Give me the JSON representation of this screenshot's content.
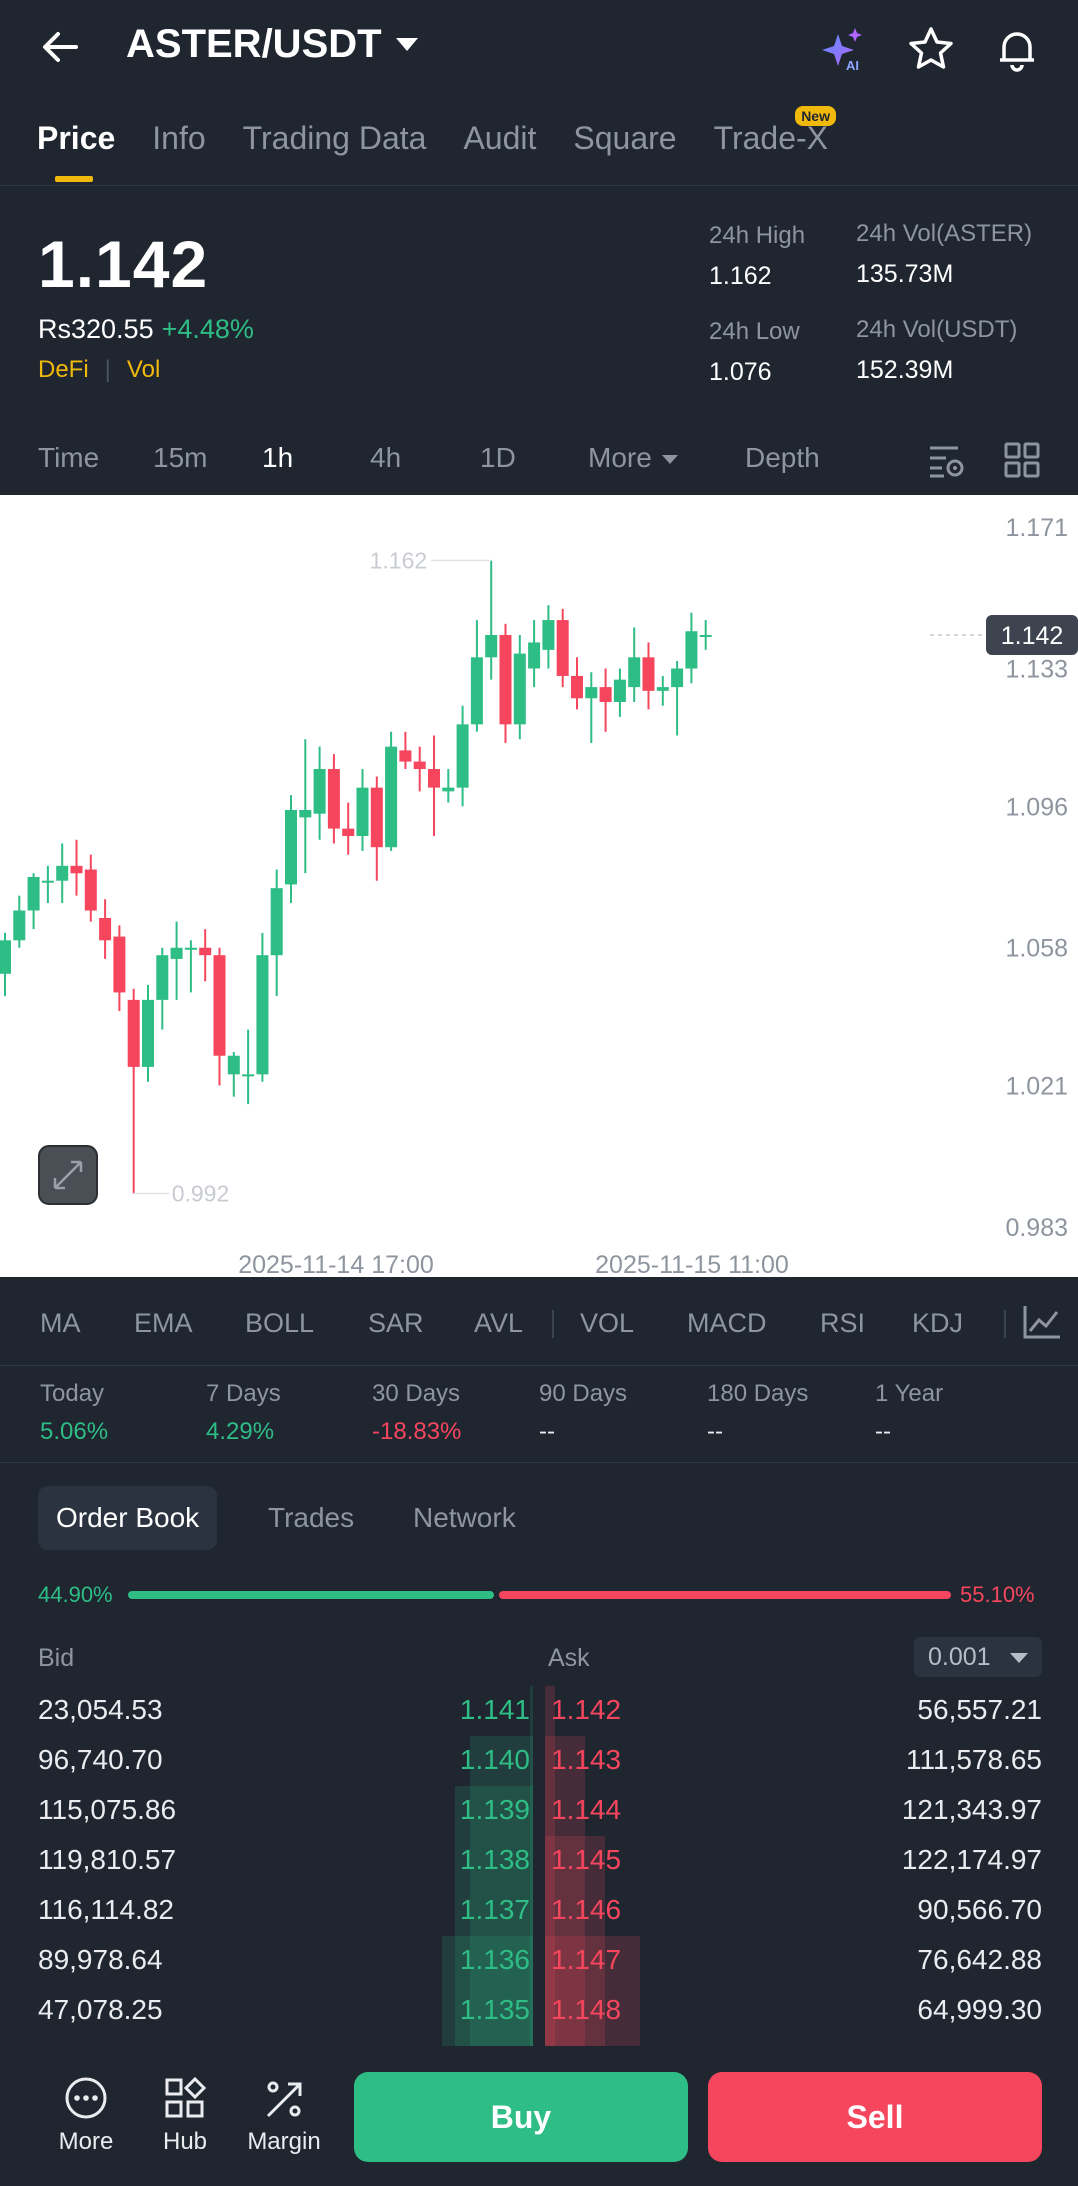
{
  "header": {
    "pair": "ASTER/USDT",
    "icons": [
      "back-arrow-icon",
      "ai-sparkle-icon",
      "star-icon",
      "bell-icon"
    ]
  },
  "tabs": [
    {
      "label": "Price",
      "active": true
    },
    {
      "label": "Info"
    },
    {
      "label": "Trading Data"
    },
    {
      "label": "Audit"
    },
    {
      "label": "Square"
    },
    {
      "label": "Trade-X",
      "badge": "New"
    }
  ],
  "summary": {
    "price": "1.142",
    "fiat": "Rs320.55",
    "change": "+4.48%",
    "tags": [
      "DeFi",
      "Vol"
    ],
    "high_label": "24h High",
    "high": "1.162",
    "low_label": "24h Low",
    "low": "1.076",
    "vol_aster_label": "24h Vol(ASTER)",
    "vol_aster": "135.73M",
    "vol_usdt_label": "24h Vol(USDT)",
    "vol_usdt": "152.39M"
  },
  "timeframes": [
    "Time",
    "15m",
    "1h",
    "4h",
    "1D",
    "More",
    "Depth"
  ],
  "active_timeframe": "1h",
  "chart": {
    "y_ticks": [
      "1.171",
      "1.133",
      "1.096",
      "1.058",
      "1.021",
      "0.983"
    ],
    "x_ticks": [
      "2025-11-14 17:00",
      "2025-11-15 11:00"
    ],
    "last_price": "1.142",
    "high_marker": "1.162",
    "low_marker": "0.992",
    "up_color": "#2ebd85",
    "down_color": "#f6465d"
  },
  "chart_data": {
    "type": "candlestick",
    "y_range": [
      0.983,
      1.171
    ],
    "candles": [
      {
        "o": 1.051,
        "h": 1.062,
        "l": 1.045,
        "c": 1.06
      },
      {
        "o": 1.06,
        "h": 1.072,
        "l": 1.058,
        "c": 1.068
      },
      {
        "o": 1.068,
        "h": 1.078,
        "l": 1.063,
        "c": 1.077
      },
      {
        "o": 1.076,
        "h": 1.08,
        "l": 1.07,
        "c": 1.076
      },
      {
        "o": 1.076,
        "h": 1.086,
        "l": 1.07,
        "c": 1.08
      },
      {
        "o": 1.08,
        "h": 1.087,
        "l": 1.072,
        "c": 1.078
      },
      {
        "o": 1.079,
        "h": 1.083,
        "l": 1.065,
        "c": 1.068
      },
      {
        "o": 1.066,
        "h": 1.071,
        "l": 1.055,
        "c": 1.06
      },
      {
        "o": 1.061,
        "h": 1.064,
        "l": 1.041,
        "c": 1.046
      },
      {
        "o": 1.044,
        "h": 1.047,
        "l": 0.992,
        "c": 1.026
      },
      {
        "o": 1.026,
        "h": 1.048,
        "l": 1.022,
        "c": 1.044
      },
      {
        "o": 1.044,
        "h": 1.058,
        "l": 1.036,
        "c": 1.056
      },
      {
        "o": 1.055,
        "h": 1.065,
        "l": 1.044,
        "c": 1.058
      },
      {
        "o": 1.058,
        "h": 1.06,
        "l": 1.046,
        "c": 1.058
      },
      {
        "o": 1.058,
        "h": 1.063,
        "l": 1.049,
        "c": 1.056
      },
      {
        "o": 1.056,
        "h": 1.058,
        "l": 1.021,
        "c": 1.029
      },
      {
        "o": 1.024,
        "h": 1.03,
        "l": 1.018,
        "c": 1.029
      },
      {
        "o": 1.024,
        "h": 1.036,
        "l": 1.016,
        "c": 1.024
      },
      {
        "o": 1.024,
        "h": 1.062,
        "l": 1.022,
        "c": 1.056
      },
      {
        "o": 1.056,
        "h": 1.079,
        "l": 1.045,
        "c": 1.074
      },
      {
        "o": 1.075,
        "h": 1.099,
        "l": 1.07,
        "c": 1.095
      },
      {
        "o": 1.093,
        "h": 1.114,
        "l": 1.078,
        "c": 1.095
      },
      {
        "o": 1.094,
        "h": 1.112,
        "l": 1.087,
        "c": 1.106
      },
      {
        "o": 1.106,
        "h": 1.11,
        "l": 1.086,
        "c": 1.09
      },
      {
        "o": 1.09,
        "h": 1.097,
        "l": 1.083,
        "c": 1.088
      },
      {
        "o": 1.088,
        "h": 1.106,
        "l": 1.084,
        "c": 1.101
      },
      {
        "o": 1.101,
        "h": 1.104,
        "l": 1.076,
        "c": 1.085
      },
      {
        "o": 1.085,
        "h": 1.116,
        "l": 1.084,
        "c": 1.112
      },
      {
        "o": 1.111,
        "h": 1.116,
        "l": 1.106,
        "c": 1.108
      },
      {
        "o": 1.108,
        "h": 1.112,
        "l": 1.1,
        "c": 1.106
      },
      {
        "o": 1.106,
        "h": 1.115,
        "l": 1.088,
        "c": 1.101
      },
      {
        "o": 1.1,
        "h": 1.106,
        "l": 1.097,
        "c": 1.101
      },
      {
        "o": 1.101,
        "h": 1.123,
        "l": 1.096,
        "c": 1.118
      },
      {
        "o": 1.118,
        "h": 1.146,
        "l": 1.116,
        "c": 1.136
      },
      {
        "o": 1.136,
        "h": 1.162,
        "l": 1.13,
        "c": 1.142
      },
      {
        "o": 1.142,
        "h": 1.145,
        "l": 1.113,
        "c": 1.118
      },
      {
        "o": 1.118,
        "h": 1.142,
        "l": 1.114,
        "c": 1.137
      },
      {
        "o": 1.133,
        "h": 1.146,
        "l": 1.128,
        "c": 1.14
      },
      {
        "o": 1.138,
        "h": 1.15,
        "l": 1.133,
        "c": 1.146
      },
      {
        "o": 1.146,
        "h": 1.149,
        "l": 1.128,
        "c": 1.131
      },
      {
        "o": 1.131,
        "h": 1.136,
        "l": 1.122,
        "c": 1.125
      },
      {
        "o": 1.125,
        "h": 1.132,
        "l": 1.113,
        "c": 1.128
      },
      {
        "o": 1.128,
        "h": 1.133,
        "l": 1.116,
        "c": 1.124
      },
      {
        "o": 1.124,
        "h": 1.133,
        "l": 1.12,
        "c": 1.13
      },
      {
        "o": 1.128,
        "h": 1.144,
        "l": 1.124,
        "c": 1.136
      },
      {
        "o": 1.136,
        "h": 1.14,
        "l": 1.122,
        "c": 1.127
      },
      {
        "o": 1.127,
        "h": 1.131,
        "l": 1.123,
        "c": 1.128
      },
      {
        "o": 1.128,
        "h": 1.135,
        "l": 1.115,
        "c": 1.133
      },
      {
        "o": 1.133,
        "h": 1.148,
        "l": 1.129,
        "c": 1.143
      },
      {
        "o": 1.142,
        "h": 1.146,
        "l": 1.138,
        "c": 1.142
      }
    ]
  },
  "indicators": [
    "MA",
    "EMA",
    "BOLL",
    "SAR",
    "AVL",
    "VOL",
    "MACD",
    "RSI",
    "KDJ"
  ],
  "performance": [
    {
      "label": "Today",
      "value": "5.06%",
      "color": "#2ebd85"
    },
    {
      "label": "7 Days",
      "value": "4.29%",
      "color": "#2ebd85"
    },
    {
      "label": "30 Days",
      "value": "-18.83%",
      "color": "#f6465d"
    },
    {
      "label": "90 Days",
      "value": "--",
      "color": "#eaecef"
    },
    {
      "label": "180 Days",
      "value": "--",
      "color": "#eaecef"
    },
    {
      "label": "1 Year",
      "value": "--",
      "color": "#eaecef"
    }
  ],
  "orderbook": {
    "tabs": [
      "Order Book",
      "Trades",
      "Network"
    ],
    "bid_ratio": "44.90%",
    "ask_ratio": "55.10%",
    "bid_label": "Bid",
    "ask_label": "Ask",
    "precision": "0.001",
    "rows": [
      {
        "bid_qty": "23,054.53",
        "bid": "1.141",
        "ask": "1.142",
        "ask_qty": "56,557.21"
      },
      {
        "bid_qty": "96,740.70",
        "bid": "1.140",
        "ask": "1.143",
        "ask_qty": "111,578.65"
      },
      {
        "bid_qty": "115,075.86",
        "bid": "1.139",
        "ask": "1.144",
        "ask_qty": "121,343.97"
      },
      {
        "bid_qty": "119,810.57",
        "bid": "1.138",
        "ask": "1.145",
        "ask_qty": "122,174.97"
      },
      {
        "bid_qty": "116,114.82",
        "bid": "1.137",
        "ask": "1.146",
        "ask_qty": "90,566.70"
      },
      {
        "bid_qty": "89,978.64",
        "bid": "1.136",
        "ask": "1.147",
        "ask_qty": "76,642.88"
      },
      {
        "bid_qty": "47,078.25",
        "bid": "1.135",
        "ask": "1.148",
        "ask_qty": "64,999.30"
      }
    ]
  },
  "bottom": {
    "more": "More",
    "hub": "Hub",
    "margin": "Margin",
    "buy": "Buy",
    "sell": "Sell"
  }
}
